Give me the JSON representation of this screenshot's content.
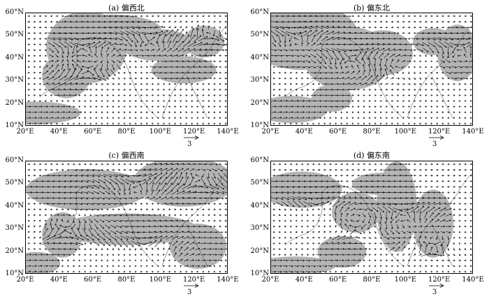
{
  "panels": [
    {
      "id": "a",
      "title": "(a) 偏西北"
    },
    {
      "id": "b",
      "title": "(b) 偏东北"
    },
    {
      "id": "c",
      "title": "(c) 偏西南"
    },
    {
      "id": "d",
      "title": "(d) 偏东南"
    }
  ],
  "lat_ticks": [
    "60°N",
    "50°N",
    "40°N",
    "30°N",
    "20°N",
    "10°N"
  ],
  "lon_ticks": [
    "20°E",
    "40°E",
    "60°E",
    "80°E",
    "100°E",
    "120°E",
    "140°E"
  ],
  "reference_vector": {
    "label": "3"
  },
  "map_extent": {
    "lon": [
      20,
      140
    ],
    "lat": [
      10,
      60
    ]
  },
  "colors": {
    "shading": "#b4b4b4",
    "vector": "#000000",
    "coast": "#333333"
  }
}
